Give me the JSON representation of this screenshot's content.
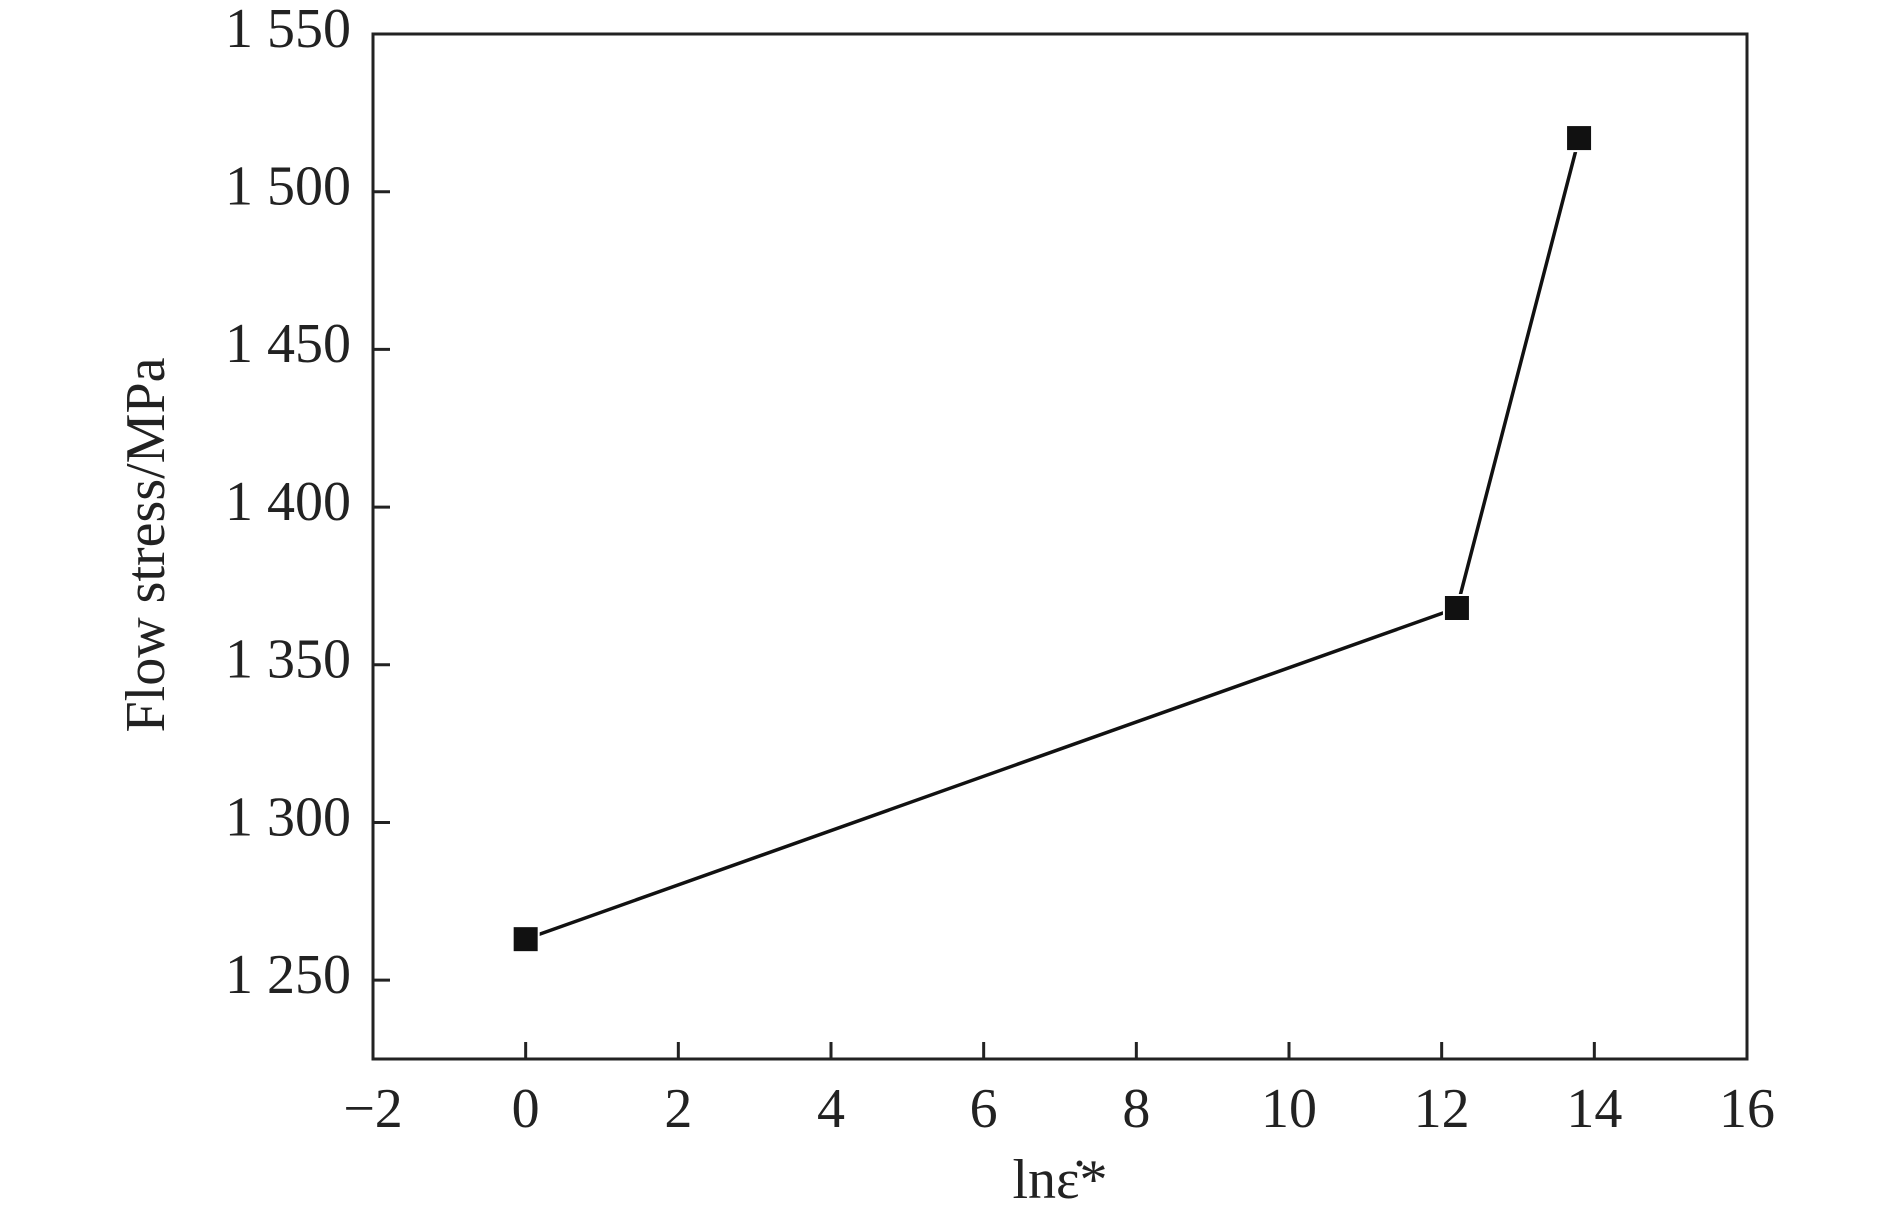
{
  "chart_data": {
    "type": "line",
    "x_label": "lnε̇*",
    "y_label": "Flow stress/MPa",
    "x": [
      0,
      12.2,
      13.8
    ],
    "series": [
      {
        "color": "#111111",
        "values": [
          1263,
          1368,
          1517
        ]
      }
    ],
    "xlim": [
      -2,
      16
    ],
    "xticks": [
      {
        "value": -2,
        "label": "−2"
      },
      0,
      2,
      4,
      6,
      8,
      10,
      12,
      14,
      16
    ],
    "ylim": [
      1225,
      1550
    ],
    "yticks": [
      {
        "value": 1250,
        "label": "1 250"
      },
      {
        "value": 1300,
        "label": "1 300"
      },
      {
        "value": 1350,
        "label": "1 350"
      },
      {
        "value": 1400,
        "label": "1 400"
      },
      {
        "value": 1450,
        "label": "1 450"
      },
      {
        "value": 1500,
        "label": "1 500"
      },
      {
        "value": 1550,
        "label": "1 550"
      }
    ],
    "grid": false
  }
}
